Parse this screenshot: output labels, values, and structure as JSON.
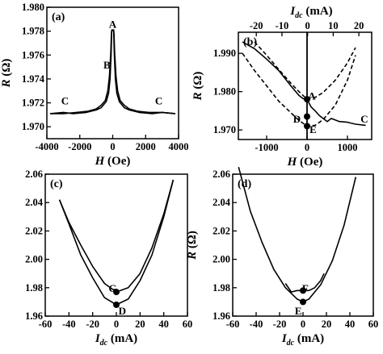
{
  "chart_data": [
    {
      "panel": "(a)",
      "type": "line",
      "xlabel": "H",
      "xunit": "(Oe)",
      "ylabel": "R",
      "yunit": "(Ω)",
      "xlim": [
        -4000,
        4000
      ],
      "ylim": [
        1.969,
        1.98
      ],
      "xticks": [
        -4000,
        -2000,
        0,
        2000,
        4000
      ],
      "yticks": [
        1.97,
        1.972,
        1.974,
        1.976,
        1.978,
        1.98
      ],
      "ytick_labels": [
        "1.970",
        "1.972",
        "1.974",
        "1.976",
        "1.978",
        "1.980"
      ],
      "series": [
        {
          "x": [
            -3800,
            -3000,
            -2200,
            -1500,
            -1000,
            -700,
            -450,
            -300,
            -200,
            -120,
            -80,
            -60,
            -40,
            0,
            60,
            100,
            160,
            250,
            400,
            700,
            1000,
            1600,
            2400,
            3000,
            3800
          ],
          "y": [
            1.9711,
            1.9711,
            1.9712,
            1.9713,
            1.9715,
            1.9718,
            1.9722,
            1.973,
            1.9742,
            1.9762,
            1.9778,
            1.9781,
            1.9781,
            1.9781,
            1.978,
            1.976,
            1.974,
            1.9728,
            1.9721,
            1.9716,
            1.9714,
            1.9712,
            1.9711,
            1.9712,
            1.9711
          ]
        },
        {
          "x": [
            3800,
            3000,
            2200,
            1500,
            1000,
            700,
            450,
            300,
            200,
            120,
            80,
            60,
            40,
            0,
            -60,
            -100,
            -160,
            -250,
            -400,
            -700,
            -1000,
            -1600,
            -2400,
            -3000,
            -3800
          ],
          "y": [
            1.9711,
            1.9712,
            1.9712,
            1.9713,
            1.9715,
            1.9718,
            1.9722,
            1.973,
            1.9742,
            1.9762,
            1.9778,
            1.9781,
            1.9781,
            1.9781,
            1.978,
            1.976,
            1.974,
            1.9728,
            1.9721,
            1.9716,
            1.9714,
            1.9712,
            1.9711,
            1.9712,
            1.9711
          ]
        }
      ],
      "point_labels": [
        {
          "text": "A",
          "x": 0,
          "y": 1.9786
        },
        {
          "text": "B",
          "x": -350,
          "y": 1.9752
        },
        {
          "text": "C",
          "x": -2900,
          "y": 1.9722
        },
        {
          "text": "C",
          "x": 2800,
          "y": 1.9722
        }
      ]
    },
    {
      "panel": "(b)",
      "type": "line",
      "xlabel": "H",
      "xunit": "(Oe)",
      "ylabel": "R",
      "yunit": "(Ω)",
      "top_xlabel": "I",
      "top_xlabel_sub": "dc",
      "top_xunit": "(mA)",
      "xlim": [
        -1700,
        1600
      ],
      "ylim": [
        1.9675,
        1.9955
      ],
      "xticks": [
        -1000,
        0,
        1000
      ],
      "xtick_labels": [
        "-1000",
        "0",
        "1000"
      ],
      "yticks": [
        1.97,
        1.98,
        1.99
      ],
      "ytick_labels": [
        "1.970",
        "1.980",
        "1.990"
      ],
      "top_xlim": [
        -27,
        25
      ],
      "top_xticks": [
        -20,
        -10,
        0,
        10,
        20
      ],
      "top_xtick_labels": [
        "-20",
        "-10",
        "0",
        "10",
        "20"
      ],
      "series": [
        {
          "style": "solid",
          "x": [
            -1600,
            -1300,
            -1000,
            -700,
            -400,
            -200,
            -100,
            -50,
            0,
            50,
            100,
            200,
            300,
            500,
            600,
            800,
            1000,
            1200,
            1450
          ],
          "y": [
            1.993,
            1.9912,
            1.9885,
            1.9855,
            1.9815,
            1.979,
            1.9782,
            1.978,
            1.978,
            1.977,
            1.976,
            1.975,
            1.9738,
            1.9722,
            1.973,
            1.9722,
            1.972,
            1.9715,
            1.9712
          ]
        },
        {
          "style": "dashed",
          "x": [
            -1600,
            -1300,
            -1000,
            -700,
            -400,
            -200,
            0,
            200,
            400,
            700,
            1000,
            1200
          ],
          "y": [
            1.99,
            1.9855,
            1.9815,
            1.9775,
            1.9745,
            1.9725,
            1.971,
            1.9712,
            1.9727,
            1.9765,
            1.983,
            1.9895
          ]
        },
        {
          "style": "dashed",
          "x": [
            -1300,
            -1000,
            -700,
            -400,
            -200,
            0,
            200,
            400,
            700,
            1000,
            1200
          ],
          "y": [
            1.993,
            1.9895,
            1.9858,
            1.9822,
            1.98,
            1.978,
            1.9785,
            1.9798,
            1.983,
            1.9875,
            1.9915
          ]
        }
      ],
      "point_labels": [
        {
          "text": "A",
          "x": 120,
          "y": 1.979
        },
        {
          "text": "D",
          "x": -250,
          "y": 1.973
        },
        {
          "text": "E",
          "x": 150,
          "y": 1.9702
        },
        {
          "text": "C",
          "x": 1420,
          "y": 1.973
        }
      ],
      "markers": [
        {
          "x": 0,
          "y": 1.978
        },
        {
          "x": 0,
          "y": 1.9735
        },
        {
          "x": 0,
          "y": 1.971
        }
      ]
    },
    {
      "panel": "(c)",
      "type": "line",
      "xlabel": "I",
      "xlabel_sub": "dc",
      "xunit": "(mA)",
      "ylabel": "",
      "yunit": "",
      "xlim": [
        -60,
        60
      ],
      "ylim": [
        1.96,
        2.06
      ],
      "xticks": [
        -60,
        -40,
        -20,
        0,
        20,
        40,
        60
      ],
      "yticks": [
        1.96,
        1.98,
        2.0,
        2.02,
        2.04,
        2.06
      ],
      "ytick_labels": [
        "1.96",
        "1.98",
        "2.00",
        "2.02",
        "2.04",
        "2.06"
      ],
      "series": [
        {
          "x": [
            -48,
            -40,
            -30,
            -20,
            -10,
            0,
            10,
            20,
            30,
            40,
            48
          ],
          "y": [
            2.042,
            2.025,
            2.003,
            1.987,
            1.973,
            1.968,
            1.972,
            1.985,
            2.003,
            2.03,
            2.056
          ]
        },
        {
          "x": [
            -48,
            -40,
            -30,
            -20,
            -10,
            0,
            10,
            20,
            30,
            40,
            48
          ],
          "y": [
            2.042,
            2.026,
            2.01,
            1.995,
            1.983,
            1.977,
            1.98,
            1.99,
            2.008,
            2.032,
            2.056
          ]
        }
      ],
      "point_labels": [
        {
          "text": "G",
          "x": -3,
          "y": 1.98
        },
        {
          "text": "D",
          "x": 5,
          "y": 1.964
        }
      ],
      "markers": [
        {
          "x": 0,
          "y": 1.977
        },
        {
          "x": 0,
          "y": 1.968
        }
      ]
    },
    {
      "panel": "(d)",
      "type": "line",
      "xlabel": "I",
      "xlabel_sub": "dc",
      "xunit": "(mA)",
      "ylabel": "R",
      "yunit": "(Ω)",
      "xlim": [
        -60,
        60
      ],
      "ylim": [
        1.96,
        2.06
      ],
      "xticks": [
        -60,
        -40,
        -20,
        0,
        20,
        40,
        60
      ],
      "yticks": [
        1.96,
        1.98,
        2.0,
        2.02,
        2.04,
        2.06
      ],
      "ytick_labels": [
        "1.96",
        "1.98",
        "2.00",
        "2.02",
        "2.04",
        "2.06"
      ],
      "series": [
        {
          "x": [
            -55,
            -45,
            -35,
            -25,
            -15,
            -5,
            0,
            5,
            15,
            25,
            35,
            45
          ],
          "y": [
            2.065,
            2.034,
            2.012,
            1.993,
            1.98,
            1.972,
            1.97,
            1.972,
            1.982,
            1.999,
            2.024,
            2.058
          ]
        },
        {
          "x": [
            -15,
            -10,
            -5,
            0,
            5,
            10,
            15,
            18
          ],
          "y": [
            1.983,
            1.977,
            1.978,
            1.978,
            1.978,
            1.98,
            1.985,
            1.99
          ]
        }
      ],
      "point_labels": [
        {
          "text": "F",
          "x": 2,
          "y": 1.98
        },
        {
          "text": "E",
          "x": -4,
          "y": 1.964
        }
      ],
      "markers": [
        {
          "x": 0,
          "y": 1.978
        },
        {
          "x": 0,
          "y": 1.97
        }
      ]
    }
  ]
}
